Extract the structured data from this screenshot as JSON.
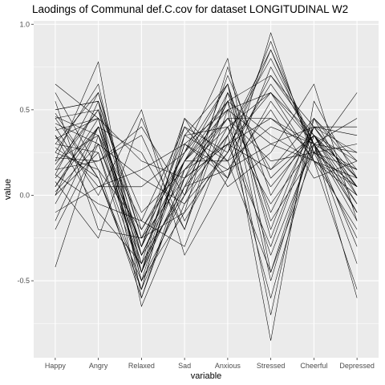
{
  "chart_data": {
    "type": "line",
    "title": "Laodings of Communal def.C.cov for dataset LONGITUDINAL W2",
    "xlabel": "variable",
    "ylabel": "value",
    "categories": [
      "Happy",
      "Angry",
      "Relaxed",
      "Sad",
      "Anxious",
      "Stressed",
      "Cheerful",
      "Depressed"
    ],
    "ylim": [
      -0.95,
      1.02
    ],
    "yticks": [
      -0.5,
      0.0,
      0.5,
      1.0
    ],
    "ytick_labels": [
      "-0.5",
      "0.0",
      "0.5",
      "1.0"
    ],
    "grid": true,
    "legend": "none",
    "colors": {
      "panel": "#ebebeb",
      "grid": "#ffffff",
      "line": "#000000"
    },
    "series": [
      {
        "values": [
          0.05,
          0.45,
          -0.35,
          0.2,
          0.55,
          -0.1,
          0.4,
          0.1
        ]
      },
      {
        "values": [
          0.48,
          0.1,
          -0.55,
          0.05,
          0.35,
          0.85,
          0.3,
          -0.1
        ]
      },
      {
        "values": [
          0.12,
          0.6,
          -0.25,
          -0.1,
          0.25,
          0.9,
          0.25,
          0.05
        ]
      },
      {
        "values": [
          0.4,
          0.0,
          0.5,
          -0.35,
          0.1,
          0.95,
          0.2,
          0.0
        ]
      },
      {
        "values": [
          0.3,
          0.25,
          -0.45,
          0.2,
          0.65,
          -0.5,
          0.35,
          0.1
        ]
      },
      {
        "values": [
          0.05,
          0.4,
          -0.3,
          0.35,
          0.2,
          0.7,
          0.4,
          0.25
        ]
      },
      {
        "values": [
          0.45,
          0.5,
          -0.5,
          0.0,
          0.55,
          0.35,
          0.2,
          -0.2
        ]
      },
      {
        "values": [
          -0.2,
          0.3,
          0.1,
          -0.05,
          0.4,
          0.6,
          0.3,
          0.15
        ]
      },
      {
        "values": [
          0.2,
          0.78,
          -0.6,
          0.15,
          0.3,
          -0.3,
          0.4,
          0.05
        ]
      },
      {
        "values": [
          0.25,
          0.15,
          -0.2,
          0.25,
          0.8,
          -0.45,
          0.25,
          0.3
        ]
      },
      {
        "values": [
          0.35,
          -0.1,
          -0.4,
          0.4,
          0.1,
          0.75,
          0.3,
          -0.05
        ]
      },
      {
        "values": [
          -0.42,
          0.35,
          -0.3,
          0.2,
          0.45,
          0.05,
          0.35,
          0.2
        ]
      },
      {
        "values": [
          0.65,
          0.45,
          0.2,
          0.1,
          0.6,
          -0.2,
          0.45,
          0.0
        ]
      },
      {
        "values": [
          0.0,
          0.55,
          -0.65,
          -0.05,
          0.25,
          0.65,
          0.3,
          -0.4
        ]
      },
      {
        "values": [
          0.15,
          0.2,
          0.35,
          -0.2,
          0.5,
          -0.85,
          0.55,
          0.1
        ]
      },
      {
        "values": [
          0.55,
          -0.2,
          -0.25,
          0.1,
          0.3,
          0.45,
          0.25,
          0.6
        ]
      },
      {
        "values": [
          0.1,
          0.4,
          -0.45,
          0.45,
          0.05,
          0.25,
          0.65,
          -0.15
        ]
      },
      {
        "values": [
          -0.1,
          0.05,
          0.05,
          0.25,
          0.65,
          -0.25,
          0.4,
          0.35
        ]
      },
      {
        "values": [
          0.3,
          0.6,
          -0.35,
          0.0,
          0.7,
          0.1,
          0.35,
          0.05
        ]
      },
      {
        "values": [
          0.45,
          0.1,
          -0.5,
          0.3,
          0.15,
          0.5,
          0.1,
          0.2
        ]
      },
      {
        "values": [
          0.2,
          0.35,
          -0.15,
          -0.3,
          0.35,
          0.8,
          0.3,
          -0.1
        ]
      },
      {
        "values": [
          0.0,
          0.25,
          -0.55,
          0.35,
          0.4,
          -0.05,
          0.3,
          0.45
        ]
      },
      {
        "values": [
          0.5,
          0.55,
          -0.2,
          0.2,
          0.5,
          0.3,
          0.2,
          -0.55
        ]
      },
      {
        "values": [
          0.08,
          -0.25,
          0.45,
          -0.15,
          0.3,
          0.6,
          0.35,
          0.1
        ]
      },
      {
        "values": [
          0.38,
          0.45,
          -0.4,
          0.05,
          0.55,
          -0.7,
          0.45,
          0.15
        ]
      },
      {
        "values": [
          0.18,
          0.5,
          -0.3,
          0.2,
          0.2,
          0.4,
          0.3,
          -0.3
        ]
      },
      {
        "values": [
          0.6,
          0.15,
          -0.6,
          0.1,
          0.45,
          0.2,
          0.25,
          0.05
        ]
      },
      {
        "values": [
          -0.05,
          0.4,
          0.25,
          -0.2,
          0.6,
          0.15,
          0.35,
          -0.05
        ]
      },
      {
        "values": [
          0.25,
          0.65,
          -0.45,
          0.3,
          0.1,
          0.55,
          0.2,
          0.1
        ]
      },
      {
        "values": [
          0.42,
          0.3,
          -0.35,
          0.15,
          0.4,
          -0.35,
          0.3,
          0.25
        ]
      },
      {
        "values": [
          0.12,
          -0.05,
          -0.15,
          0.4,
          0.25,
          0.85,
          0.25,
          -0.25
        ]
      },
      {
        "values": [
          0.33,
          0.45,
          -0.5,
          -0.1,
          0.75,
          0.0,
          0.4,
          0.05
        ]
      },
      {
        "values": [
          0.22,
          0.2,
          0.4,
          0.0,
          0.35,
          -0.6,
          0.3,
          -0.6
        ]
      },
      {
        "values": [
          0.5,
          0.55,
          -0.25,
          0.25,
          0.55,
          0.7,
          0.35,
          0.0
        ]
      },
      {
        "values": [
          0.02,
          0.3,
          -0.4,
          0.05,
          0.15,
          0.3,
          0.4,
          0.4
        ]
      },
      {
        "values": [
          0.28,
          0.1,
          -0.55,
          0.35,
          0.65,
          -0.15,
          0.25,
          0.15
        ]
      },
      {
        "values": [
          0.15,
          0.5,
          -0.1,
          0.15,
          0.45,
          0.45,
          0.3,
          -0.15
        ]
      },
      {
        "values": [
          0.46,
          0.35,
          -0.45,
          0.1,
          0.3,
          0.15,
          0.45,
          0.2
        ]
      },
      {
        "values": [
          0.35,
          0.05,
          0.15,
          0.3,
          0.5,
          0.6,
          0.2,
          0.05
        ]
      },
      {
        "values": [
          -0.15,
          0.4,
          -0.3,
          0.45,
          0.2,
          -0.45,
          0.35,
          -0.1
        ]
      }
    ]
  }
}
